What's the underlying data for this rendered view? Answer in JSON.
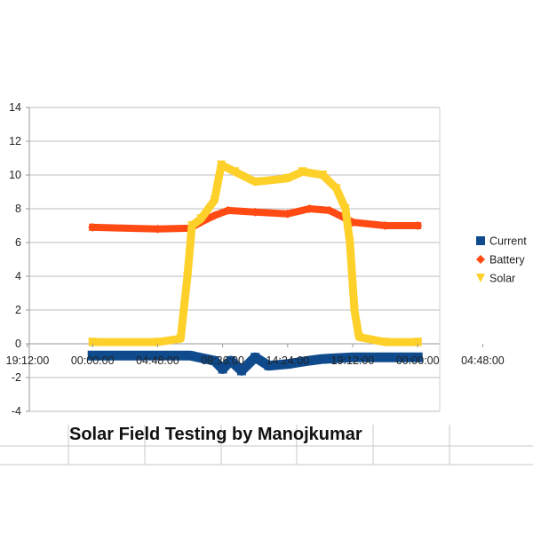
{
  "chart_data": {
    "type": "scatter",
    "title": "Solar Field Testing by Manojkumar",
    "xlabel": "",
    "ylabel": "",
    "ylim": [
      -4,
      14
    ],
    "y_ticks": [
      "-4",
      "-2",
      "0",
      "2",
      "4",
      "6",
      "8",
      "10",
      "12",
      "14"
    ],
    "x_tick_labels": [
      "19:12:00",
      "00:00:00",
      "04:48:00",
      "09:36:00",
      "14:24:00",
      "19:12:00",
      "00:00:00",
      "04:48:00"
    ],
    "grid": "horizontal",
    "legend_position": "right",
    "series": [
      {
        "name": "Current",
        "color": "#0e4a8c",
        "marker": "square",
        "x_range": [
          "00:00:00",
          "00:00:00"
        ],
        "points": [
          [
            "00:00:00",
            -0.7
          ],
          [
            "04:48:00",
            -0.7
          ],
          [
            "07:12:00",
            -0.7
          ],
          [
            "09:00:00",
            -1.0
          ],
          [
            "09:36:00",
            -1.5
          ],
          [
            "10:12:00",
            -1.0
          ],
          [
            "11:00:00",
            -1.6
          ],
          [
            "12:00:00",
            -0.8
          ],
          [
            "13:00:00",
            -1.3
          ],
          [
            "14:24:00",
            -1.2
          ],
          [
            "16:00:00",
            -1.0
          ],
          [
            "17:00:00",
            -0.9
          ],
          [
            "19:12:00",
            -0.8
          ],
          [
            "21:36:00",
            -0.8
          ],
          [
            "00:00:00",
            -0.8
          ]
        ]
      },
      {
        "name": "Battery",
        "color": "#ff4a13",
        "marker": "diamond",
        "x_range": [
          "00:00:00",
          "00:00:00"
        ],
        "points": [
          [
            "00:00:00",
            6.9
          ],
          [
            "04:48:00",
            6.8
          ],
          [
            "07:12:00",
            6.85
          ],
          [
            "08:00:00",
            7.2
          ],
          [
            "09:00:00",
            7.6
          ],
          [
            "10:00:00",
            7.9
          ],
          [
            "12:00:00",
            7.8
          ],
          [
            "14:24:00",
            7.7
          ],
          [
            "16:00:00",
            8.0
          ],
          [
            "17:30:00",
            7.9
          ],
          [
            "18:30:00",
            7.5
          ],
          [
            "19:12:00",
            7.2
          ],
          [
            "21:36:00",
            7.0
          ],
          [
            "00:00:00",
            7.0
          ]
        ]
      },
      {
        "name": "Solar",
        "color": "#fdd02a",
        "marker": "triangle-down",
        "x_range": [
          "00:00:00",
          "00:00:00"
        ],
        "points": [
          [
            "00:00:00",
            0.1
          ],
          [
            "04:48:00",
            0.1
          ],
          [
            "06:30:00",
            0.3
          ],
          [
            "07:00:00",
            4.0
          ],
          [
            "07:20:00",
            7.0
          ],
          [
            "08:00:00",
            7.4
          ],
          [
            "09:00:00",
            8.5
          ],
          [
            "09:30:00",
            10.6
          ],
          [
            "10:30:00",
            10.2
          ],
          [
            "12:00:00",
            9.6
          ],
          [
            "14:24:00",
            9.8
          ],
          [
            "15:30:00",
            10.2
          ],
          [
            "17:00:00",
            10.0
          ],
          [
            "18:00:00",
            9.2
          ],
          [
            "18:40:00",
            8.0
          ],
          [
            "19:00:00",
            6.0
          ],
          [
            "19:20:00",
            2.0
          ],
          [
            "19:40:00",
            0.4
          ],
          [
            "21:36:00",
            0.1
          ],
          [
            "00:00:00",
            0.1
          ]
        ]
      }
    ]
  }
}
